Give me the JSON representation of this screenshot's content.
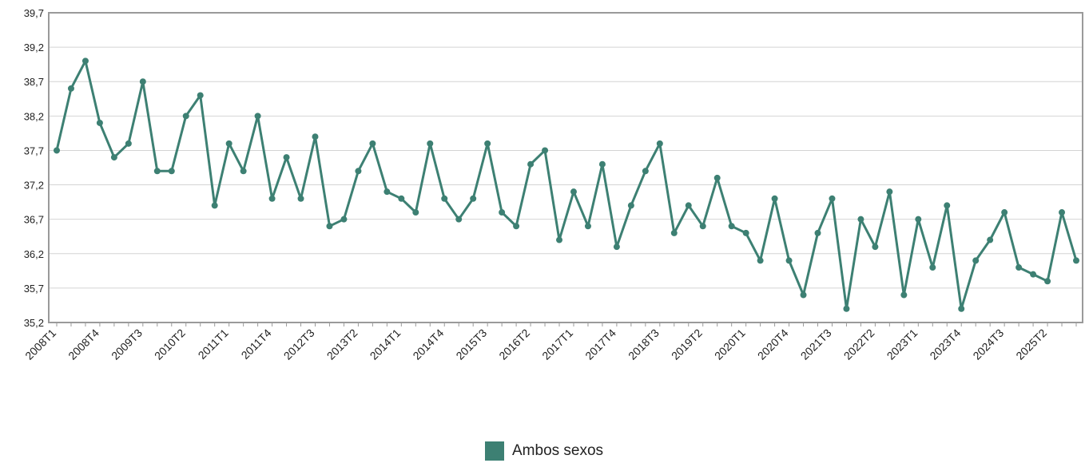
{
  "chart_data": {
    "type": "line",
    "title": "",
    "xlabel": "",
    "ylabel": "",
    "ylim": [
      35.2,
      39.7
    ],
    "yticks": [
      "35,2",
      "35,7",
      "36,2",
      "36,7",
      "37,2",
      "37,7",
      "38,2",
      "38,7",
      "39,2",
      "39,7"
    ],
    "x": [
      "2008T1",
      "2008T2",
      "2008T3",
      "2008T4",
      "2009T1",
      "2009T2",
      "2009T3",
      "2009T4",
      "2010T1",
      "2010T2",
      "2010T3",
      "2010T4",
      "2011T1",
      "2011T2",
      "2011T3",
      "2011T4",
      "2012T1",
      "2012T2",
      "2012T3",
      "2012T4",
      "2013T1",
      "2013T2",
      "2013T3",
      "2013T4",
      "2014T1",
      "2014T2",
      "2014T3",
      "2014T4",
      "2015T1",
      "2015T2",
      "2015T3",
      "2015T4",
      "2016T1",
      "2016T2",
      "2016T3",
      "2016T4",
      "2017T1",
      "2017T2",
      "2017T3",
      "2017T4",
      "2018T1",
      "2018T2",
      "2018T3",
      "2018T4",
      "2019T1",
      "2019T2",
      "2019T3",
      "2019T4",
      "2020T1",
      "2020T2",
      "2020T3",
      "2020T4",
      "2021T1",
      "2021T2",
      "2021T3",
      "2021T4",
      "2022T1",
      "2022T2",
      "2022T3",
      "2022T4",
      "2023T1",
      "2023T2",
      "2023T3",
      "2023T4",
      "2024T1",
      "2024T2",
      "2024T3",
      "2024T4",
      "2025T1",
      "2025T2",
      "2025T3",
      "2025T4"
    ],
    "xtick_labels": [
      "2008T1",
      "2008T4",
      "2009T3",
      "2010T2",
      "2011T1",
      "2011T4",
      "2012T3",
      "2013T2",
      "2014T1",
      "2014T4",
      "2015T3",
      "2016T2",
      "2017T1",
      "2017T4",
      "2018T3",
      "2019T2",
      "2020T1",
      "2020T4",
      "2021T3",
      "2022T2",
      "2023T1",
      "2023T4",
      "2024T3",
      "2025T2"
    ],
    "series": [
      {
        "name": "Ambos sexos",
        "color": "#3d8073",
        "values": [
          37.7,
          38.6,
          39.0,
          38.1,
          37.6,
          37.8,
          38.7,
          37.4,
          37.4,
          38.2,
          38.5,
          36.9,
          37.8,
          37.4,
          38.2,
          37.0,
          37.6,
          37.0,
          37.9,
          36.6,
          36.7,
          37.4,
          37.8,
          37.1,
          37.0,
          36.8,
          37.8,
          37.0,
          36.7,
          37.0,
          37.8,
          36.8,
          36.6,
          37.5,
          37.7,
          36.4,
          37.1,
          36.6,
          37.5,
          36.3,
          36.9,
          37.4,
          37.8,
          36.5,
          36.9,
          36.6,
          37.3,
          36.6,
          36.5,
          36.1,
          37.0,
          36.1,
          35.6,
          36.5,
          37.0,
          35.4,
          36.7,
          36.3,
          37.1,
          35.6,
          36.7,
          36.0,
          36.9,
          35.4,
          36.1,
          36.4,
          36.8,
          36.0,
          35.9,
          35.8,
          36.8,
          36.1
        ]
      }
    ],
    "grid": true,
    "legend_position": "bottom-center"
  }
}
